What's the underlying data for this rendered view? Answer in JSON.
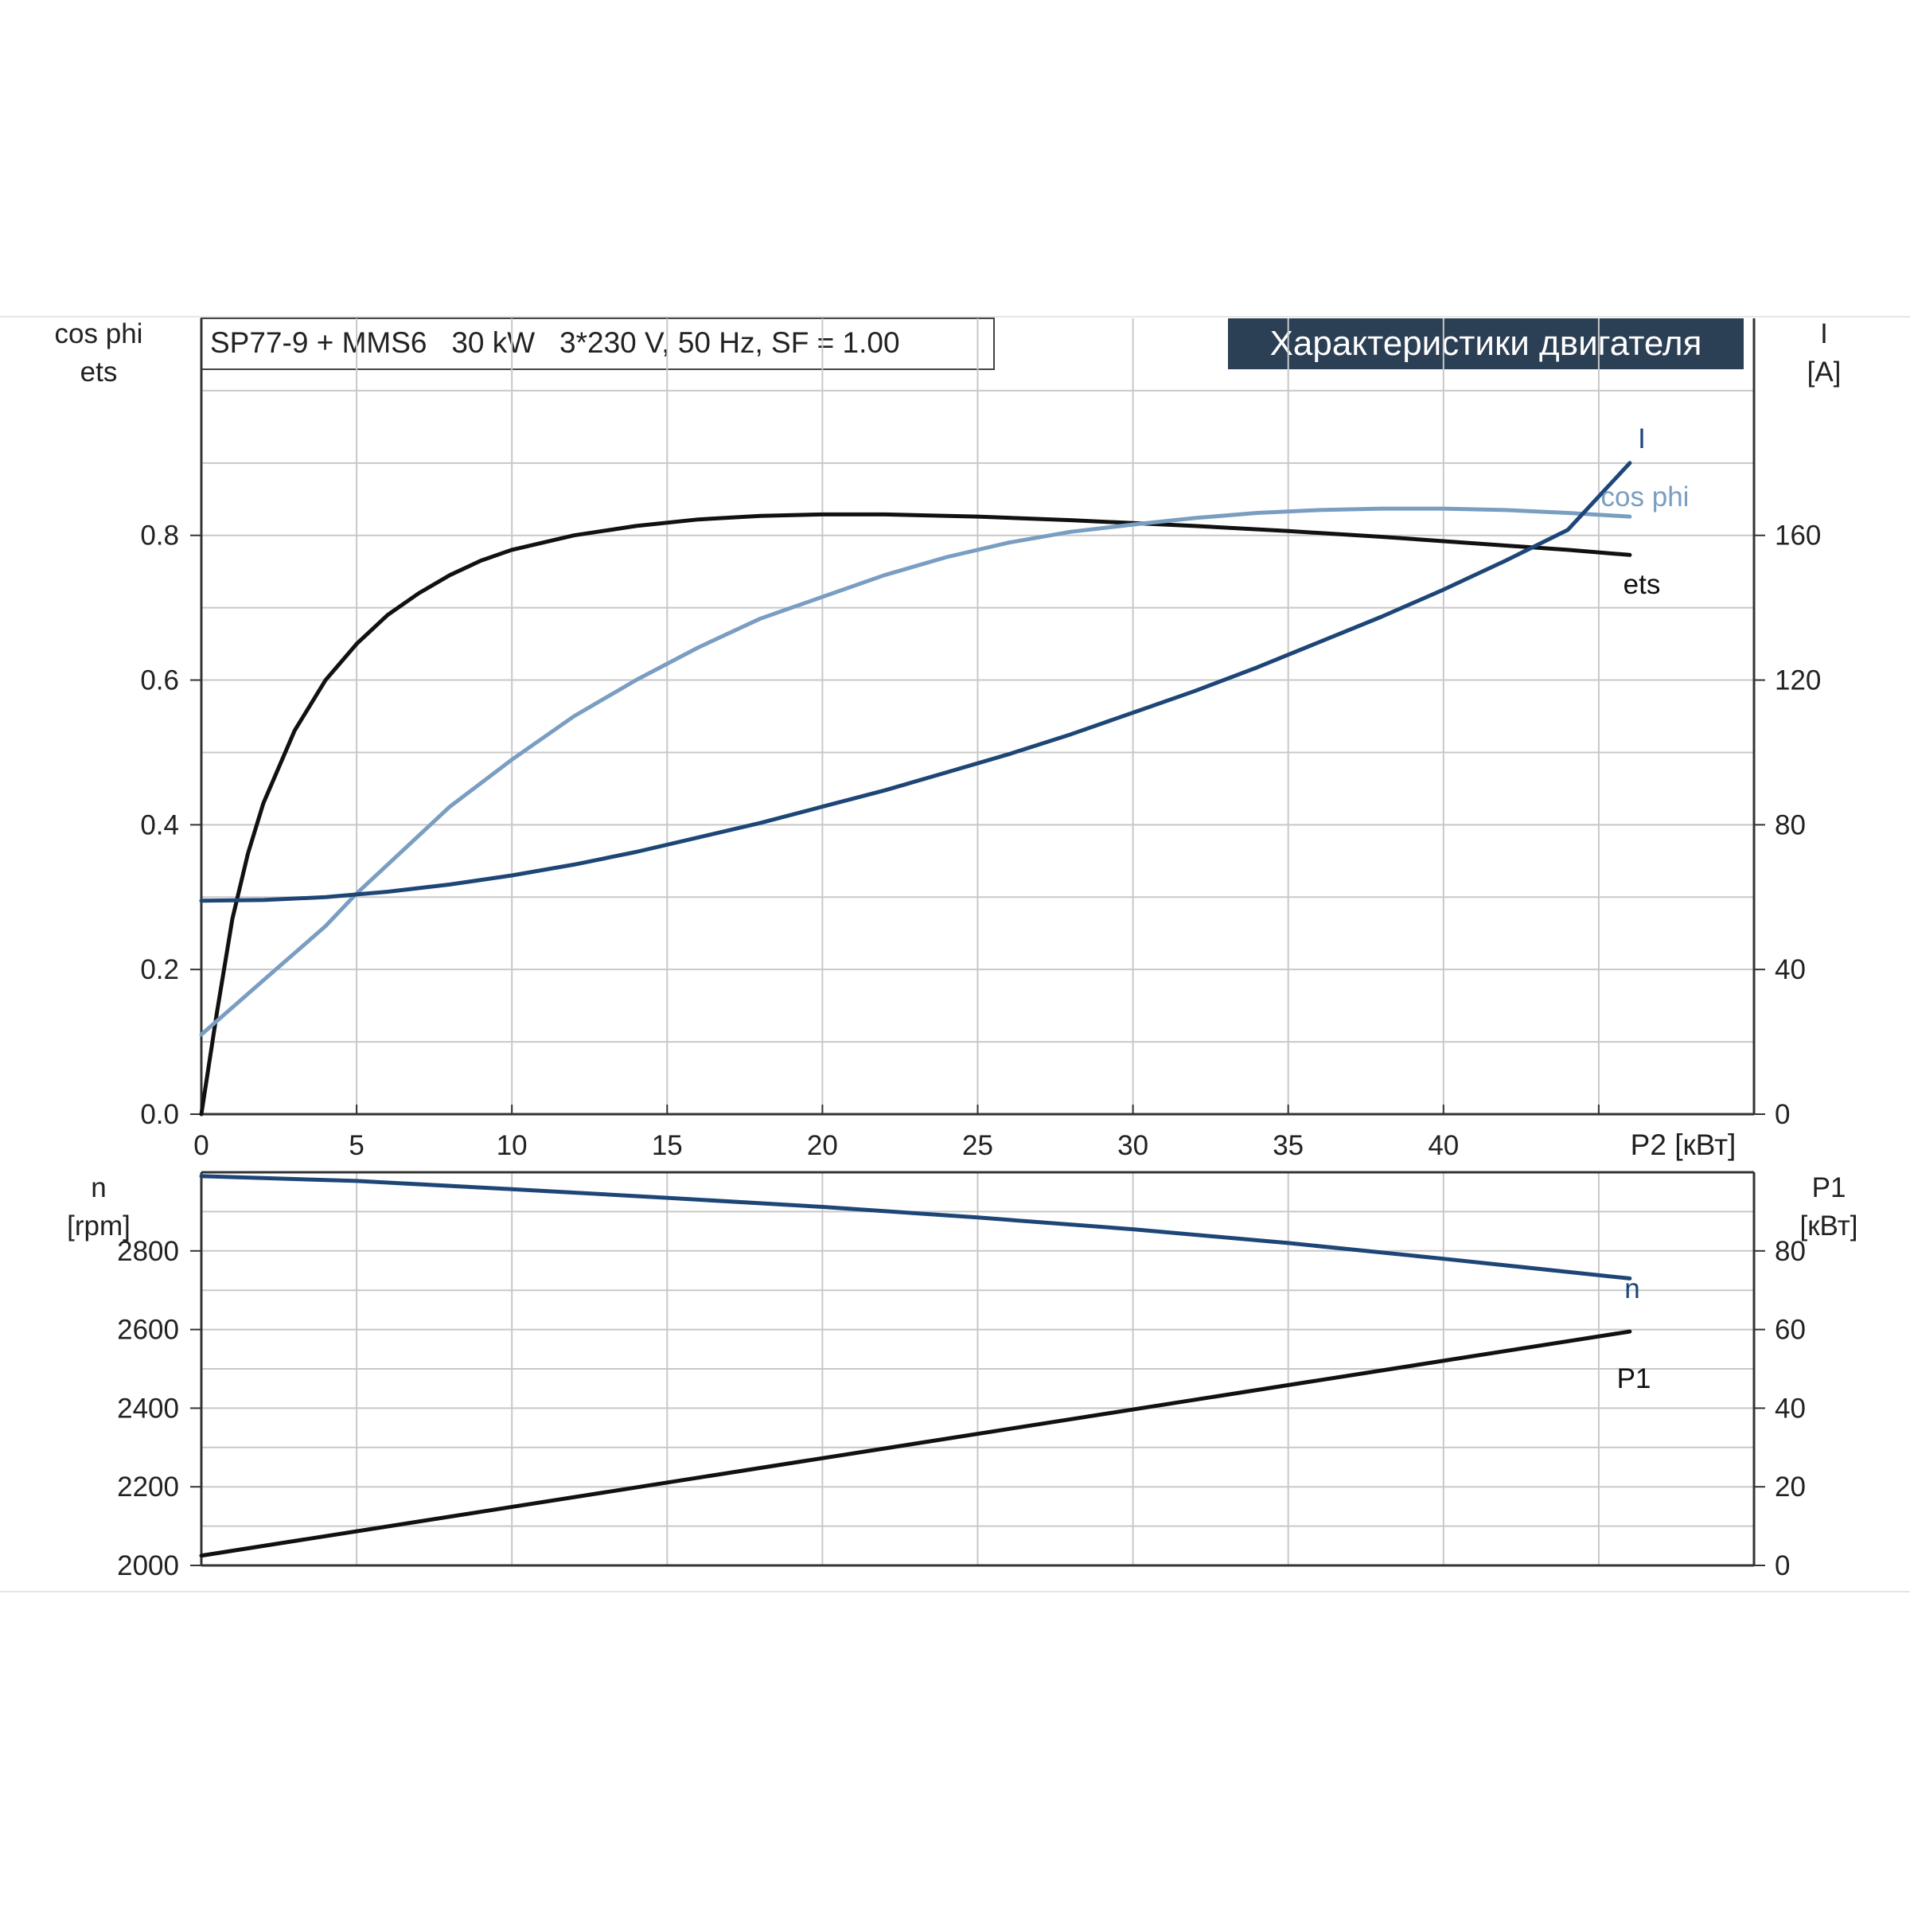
{
  "header": {
    "info_box": "SP77-9 + MMS6   30 kW   3*230 V, 50 Hz, SF = 1.00",
    "title": "Характеристики двигателя"
  },
  "colors": {
    "ets": "#111111",
    "cos_phi": "#7a9dc2",
    "I": "#1d4677",
    "n": "#1d4677",
    "P1": "#111111",
    "title_bg": "#2b3f55",
    "grid": "#c8c8c8"
  },
  "chart_data": [
    {
      "type": "line",
      "title": "",
      "xlabel": "P2 [кВт]",
      "x_ticks": [
        "0",
        "5",
        "10",
        "15",
        "20",
        "25",
        "30",
        "35",
        "40"
      ],
      "xlim": [
        0,
        50
      ],
      "left_axis": {
        "label_lines": [
          "cos phi",
          "ets"
        ],
        "ticks": [
          "0.0",
          "0.2",
          "0.4",
          "0.6",
          "0.8"
        ],
        "ylim": [
          0,
          1.1
        ]
      },
      "right_axis": {
        "label_lines": [
          "I",
          "[A]"
        ],
        "ticks": [
          "0",
          "40",
          "80",
          "120",
          "160"
        ],
        "ylim": [
          0,
          220
        ]
      },
      "grid": true,
      "series": [
        {
          "name": "ets",
          "axis": "left",
          "x": [
            0,
            0.5,
            1,
            1.5,
            2,
            3,
            4,
            5,
            6,
            7,
            8,
            9,
            10,
            12,
            14,
            16,
            18,
            20,
            22,
            25,
            28,
            30,
            32,
            35,
            38,
            40,
            42,
            44,
            46
          ],
          "y": [
            0.0,
            0.14,
            0.27,
            0.36,
            0.43,
            0.53,
            0.6,
            0.65,
            0.69,
            0.72,
            0.745,
            0.765,
            0.78,
            0.8,
            0.813,
            0.822,
            0.827,
            0.829,
            0.829,
            0.826,
            0.821,
            0.817,
            0.813,
            0.806,
            0.798,
            0.792,
            0.786,
            0.78,
            0.773
          ]
        },
        {
          "name": "cos phi",
          "axis": "left",
          "x": [
            0,
            2,
            4,
            5,
            6,
            8,
            10,
            12,
            14,
            16,
            18,
            20,
            22,
            24,
            26,
            28,
            30,
            32,
            34,
            36,
            38,
            40,
            42,
            44,
            46
          ],
          "y": [
            0.11,
            0.185,
            0.26,
            0.305,
            0.345,
            0.425,
            0.49,
            0.55,
            0.6,
            0.645,
            0.685,
            0.715,
            0.745,
            0.77,
            0.79,
            0.805,
            0.815,
            0.824,
            0.831,
            0.835,
            0.837,
            0.837,
            0.835,
            0.831,
            0.826
          ]
        },
        {
          "name": "I",
          "axis": "right",
          "x": [
            0,
            2,
            4,
            6,
            8,
            10,
            12,
            14,
            16,
            18,
            20,
            22,
            24,
            26,
            28,
            30,
            32,
            34,
            36,
            38,
            40,
            42,
            44,
            46
          ],
          "y": [
            59,
            59.2,
            60,
            61.5,
            63.5,
            66,
            69,
            72.5,
            76.5,
            80.5,
            85,
            89.5,
            94.5,
            99.5,
            105,
            111,
            117,
            123.5,
            130.5,
            137.5,
            145,
            153,
            161.5,
            180
          ]
        }
      ]
    },
    {
      "type": "line",
      "title": "",
      "xlabel": "",
      "xlim": [
        0,
        50
      ],
      "left_axis": {
        "label_lines": [
          "n",
          "[rpm]"
        ],
        "ticks": [
          "2000",
          "2200",
          "2400",
          "2600",
          "2800"
        ],
        "ylim": [
          2000,
          3000
        ]
      },
      "right_axis": {
        "label_lines": [
          "P1",
          "[кВт]"
        ],
        "ticks": [
          "0",
          "20",
          "40",
          "60",
          "80"
        ],
        "ylim": [
          0,
          100
        ]
      },
      "grid": true,
      "series": [
        {
          "name": "n",
          "axis": "left",
          "x": [
            0,
            5,
            10,
            15,
            20,
            25,
            30,
            35,
            40,
            46
          ],
          "y": [
            2990,
            2978,
            2957,
            2935,
            2912,
            2885,
            2855,
            2820,
            2780,
            2730
          ]
        },
        {
          "name": "P1",
          "axis": "right",
          "x": [
            0,
            46
          ],
          "y": [
            2.5,
            59.5
          ]
        }
      ]
    }
  ]
}
